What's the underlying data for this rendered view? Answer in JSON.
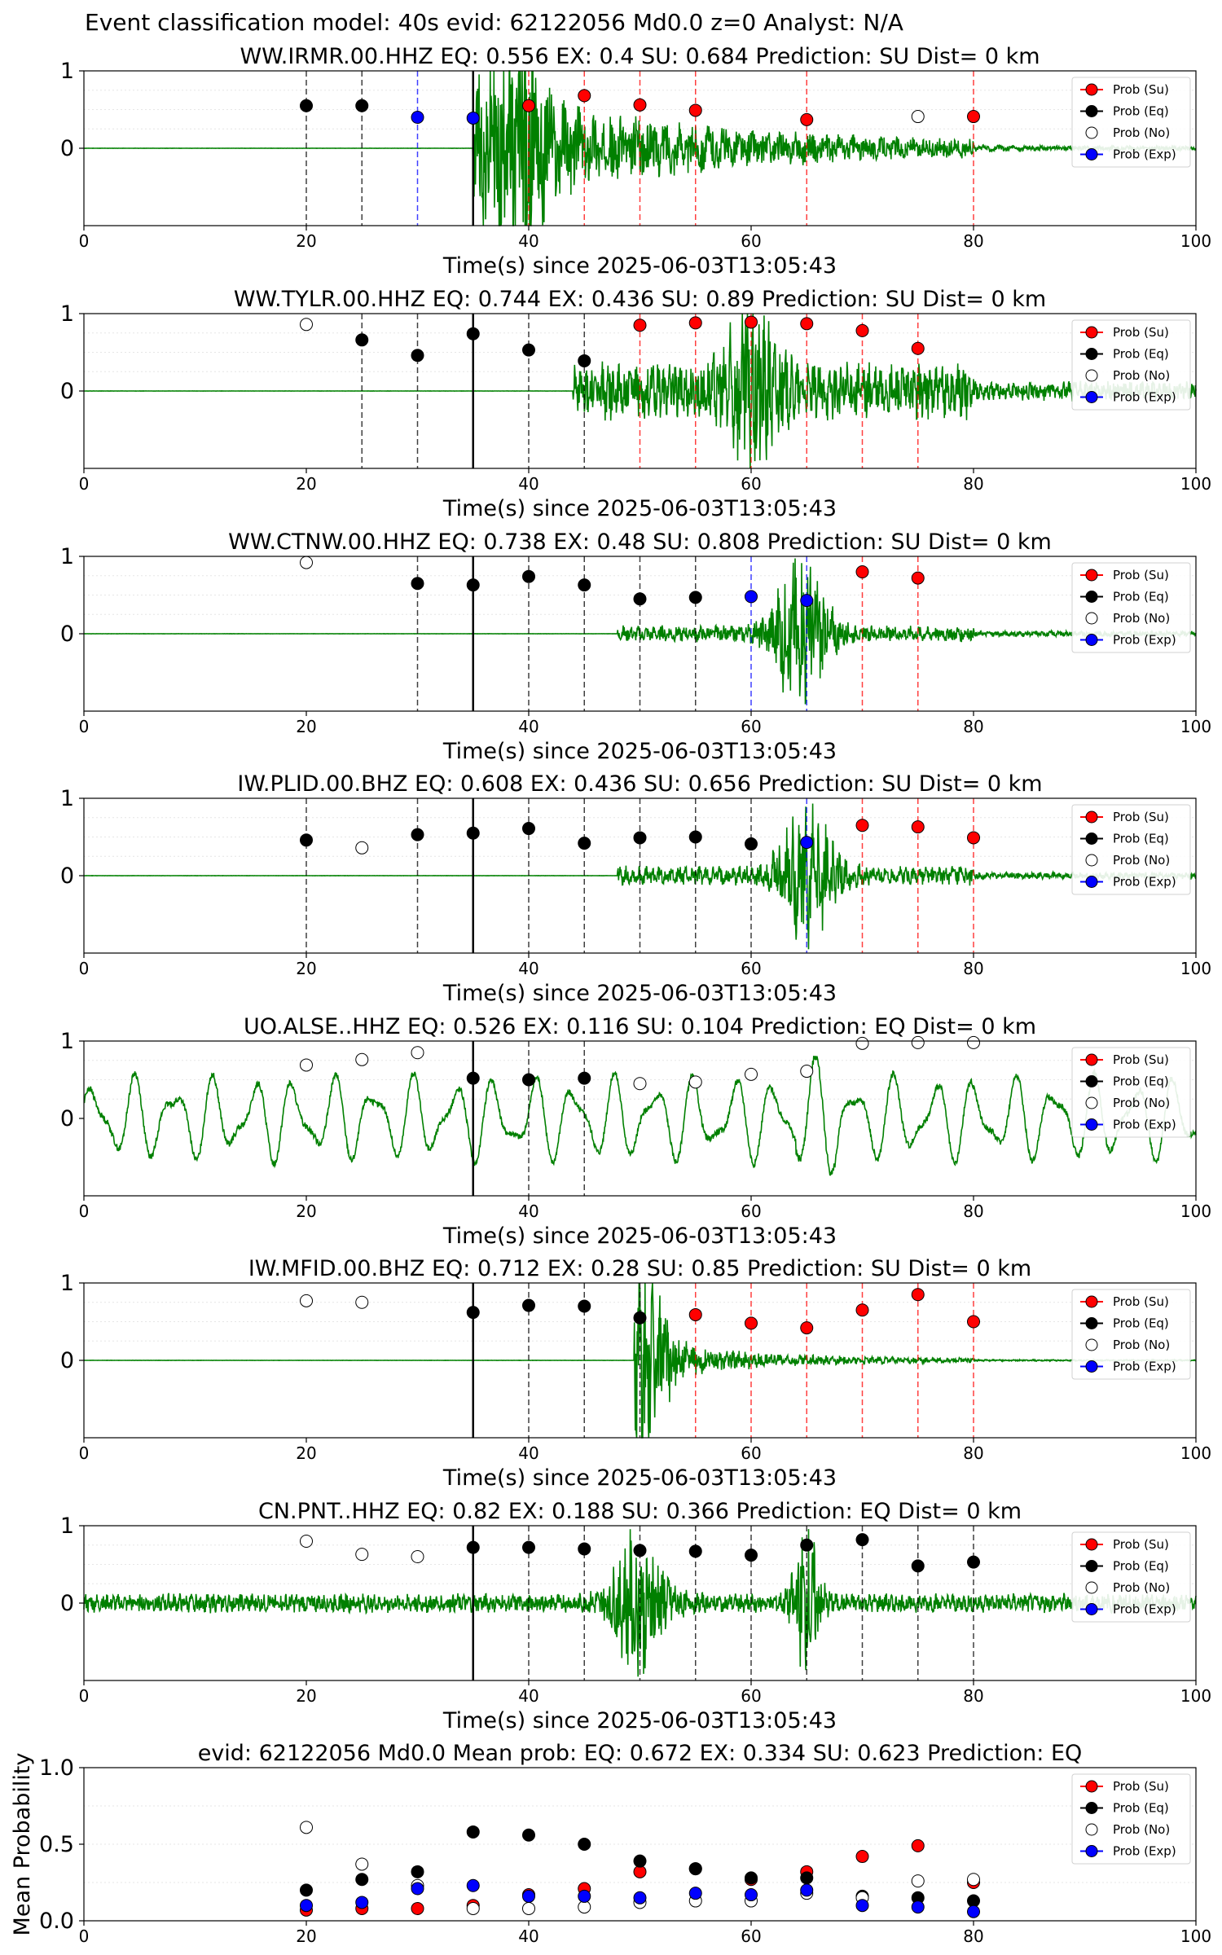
{
  "figure": {
    "suptitle": "Event classification model: 40s evid: 62122056 Md0.0 z=0 Analyst: N/A"
  },
  "legend": {
    "entries": [
      {
        "label": "Prob (Su)",
        "color": "#ff0000",
        "filled": true
      },
      {
        "label": "Prob (Eq)",
        "color": "#000000",
        "filled": true
      },
      {
        "label": "Prob (No)",
        "color": "#ffffff",
        "filled": false
      },
      {
        "label": "Prob (Exp)",
        "color": "#0000ff",
        "filled": true
      }
    ]
  },
  "colors": {
    "waveform": "#008000",
    "su": "#ff0000",
    "eq": "#000000",
    "exp": "#0000ff",
    "origin_line": "#000000"
  },
  "chart_data": [
    {
      "type": "scatter",
      "title": "WW.IRMR.00.HHZ   EQ: 0.556  EX: 0.4  SU: 0.684   Prediction: SU    Dist= 0 km",
      "xlabel": "Time(s) since 2025-06-03T13:05:43",
      "xlim": [
        0,
        100
      ],
      "xticks": [
        0,
        20,
        40,
        60,
        80,
        100
      ],
      "ylim": [
        -1,
        1
      ],
      "yticks": [
        0,
        1
      ],
      "origin_time": 35,
      "waveform": {
        "onset": 35,
        "amplitude": 0.8,
        "decay": 0.06,
        "period": 1.3,
        "peak_at": 39,
        "peak_amp": 1.0,
        "seed": 11
      },
      "points": [
        {
          "x": 20,
          "y": 0.55,
          "class": "Eq"
        },
        {
          "x": 25,
          "y": 0.55,
          "class": "Eq"
        },
        {
          "x": 30,
          "y": 0.4,
          "class": "Exp"
        },
        {
          "x": 35,
          "y": 0.39,
          "class": "Exp"
        },
        {
          "x": 40,
          "y": 0.55,
          "class": "Su"
        },
        {
          "x": 45,
          "y": 0.68,
          "class": "Su"
        },
        {
          "x": 50,
          "y": 0.56,
          "class": "Su"
        },
        {
          "x": 55,
          "y": 0.49,
          "class": "Su"
        },
        {
          "x": 65,
          "y": 0.37,
          "class": "Su"
        },
        {
          "x": 75,
          "y": 0.41,
          "class": "No"
        },
        {
          "x": 80,
          "y": 0.41,
          "class": "Su"
        }
      ]
    },
    {
      "type": "scatter",
      "title": "WW.TYLR.00.HHZ   EQ: 0.744  EX: 0.436  SU: 0.89   Prediction: SU    Dist= 0 km",
      "xlabel": "Time(s) since 2025-06-03T13:05:43",
      "xlim": [
        0,
        100
      ],
      "xticks": [
        0,
        20,
        40,
        60,
        80,
        100
      ],
      "ylim": [
        -1,
        1
      ],
      "yticks": [
        0,
        1
      ],
      "origin_time": 35,
      "waveform": {
        "onset": 44,
        "amplitude": 0.35,
        "decay": 0.0,
        "period": 0.5,
        "peak_at": 60,
        "peak_amp": 0.85,
        "seed": 22
      },
      "points": [
        {
          "x": 20,
          "y": 0.86,
          "class": "No"
        },
        {
          "x": 25,
          "y": 0.66,
          "class": "Eq"
        },
        {
          "x": 30,
          "y": 0.46,
          "class": "Eq"
        },
        {
          "x": 35,
          "y": 0.74,
          "class": "Eq"
        },
        {
          "x": 40,
          "y": 0.53,
          "class": "Eq"
        },
        {
          "x": 45,
          "y": 0.39,
          "class": "Eq"
        },
        {
          "x": 50,
          "y": 0.85,
          "class": "Su"
        },
        {
          "x": 55,
          "y": 0.88,
          "class": "Su"
        },
        {
          "x": 60,
          "y": 0.89,
          "class": "Su"
        },
        {
          "x": 65,
          "y": 0.87,
          "class": "Su"
        },
        {
          "x": 70,
          "y": 0.78,
          "class": "Su"
        },
        {
          "x": 75,
          "y": 0.55,
          "class": "Su"
        }
      ]
    },
    {
      "type": "scatter",
      "title": "WW.CTNW.00.HHZ   EQ: 0.738  EX: 0.48  SU: 0.808   Prediction: SU    Dist= 0 km",
      "xlabel": "Time(s) since 2025-06-03T13:05:43",
      "xlim": [
        0,
        100
      ],
      "xticks": [
        0,
        20,
        40,
        60,
        80,
        100
      ],
      "ylim": [
        -1,
        1
      ],
      "yticks": [
        0,
        1
      ],
      "origin_time": 35,
      "waveform": {
        "onset": 48,
        "amplitude": 0.1,
        "decay": 0.0,
        "period": 0.7,
        "peak_at": 64.5,
        "peak_amp": 0.95,
        "seed": 33
      },
      "points": [
        {
          "x": 20,
          "y": 0.92,
          "class": "No"
        },
        {
          "x": 30,
          "y": 0.65,
          "class": "Eq"
        },
        {
          "x": 35,
          "y": 0.63,
          "class": "Eq"
        },
        {
          "x": 40,
          "y": 0.74,
          "class": "Eq"
        },
        {
          "x": 45,
          "y": 0.63,
          "class": "Eq"
        },
        {
          "x": 50,
          "y": 0.45,
          "class": "Eq"
        },
        {
          "x": 55,
          "y": 0.47,
          "class": "Eq"
        },
        {
          "x": 60,
          "y": 0.48,
          "class": "Exp"
        },
        {
          "x": 65,
          "y": 0.43,
          "class": "Exp"
        },
        {
          "x": 70,
          "y": 0.8,
          "class": "Su"
        },
        {
          "x": 75,
          "y": 0.72,
          "class": "Su"
        }
      ]
    },
    {
      "type": "scatter",
      "title": "IW.PLID.00.BHZ   EQ: 0.608  EX: 0.436  SU: 0.656   Prediction: SU    Dist= 0 km",
      "xlabel": "Time(s) since 2025-06-03T13:05:43",
      "xlim": [
        0,
        100
      ],
      "xticks": [
        0,
        20,
        40,
        60,
        80,
        100
      ],
      "ylim": [
        -1,
        1
      ],
      "yticks": [
        0,
        1
      ],
      "origin_time": 35,
      "waveform": {
        "onset": 48,
        "amplitude": 0.12,
        "decay": 0.0,
        "period": 0.6,
        "peak_at": 65,
        "peak_amp": 0.85,
        "seed": 44
      },
      "points": [
        {
          "x": 20,
          "y": 0.46,
          "class": "Eq"
        },
        {
          "x": 25,
          "y": 0.36,
          "class": "No"
        },
        {
          "x": 30,
          "y": 0.53,
          "class": "Eq"
        },
        {
          "x": 35,
          "y": 0.55,
          "class": "Eq"
        },
        {
          "x": 40,
          "y": 0.61,
          "class": "Eq"
        },
        {
          "x": 45,
          "y": 0.42,
          "class": "Eq"
        },
        {
          "x": 50,
          "y": 0.49,
          "class": "Eq"
        },
        {
          "x": 55,
          "y": 0.5,
          "class": "Eq"
        },
        {
          "x": 60,
          "y": 0.41,
          "class": "Eq"
        },
        {
          "x": 65,
          "y": 0.43,
          "class": "Exp"
        },
        {
          "x": 70,
          "y": 0.65,
          "class": "Su"
        },
        {
          "x": 75,
          "y": 0.63,
          "class": "Su"
        },
        {
          "x": 80,
          "y": 0.49,
          "class": "Su"
        }
      ]
    },
    {
      "type": "scatter",
      "title": "UO.ALSE..HHZ   EQ: 0.526  EX: 0.116  SU: 0.104   Prediction: EQ    Dist= 0 km",
      "xlabel": "Time(s) since 2025-06-03T13:05:43",
      "xlim": [
        0,
        100
      ],
      "xticks": [
        0,
        20,
        40,
        60,
        80,
        100
      ],
      "ylim": [
        -1,
        1
      ],
      "yticks": [
        0,
        1
      ],
      "origin_time": 35,
      "waveform": {
        "onset": 0,
        "amplitude": 0.55,
        "decay": 0.0,
        "period": 3.6,
        "peak_at": 66,
        "peak_amp": 0.9,
        "seed": 55,
        "lowfreq": true
      },
      "points": [
        {
          "x": 20,
          "y": 0.69,
          "class": "No"
        },
        {
          "x": 25,
          "y": 0.76,
          "class": "No"
        },
        {
          "x": 30,
          "y": 0.85,
          "class": "No"
        },
        {
          "x": 35,
          "y": 0.52,
          "class": "Eq"
        },
        {
          "x": 40,
          "y": 0.5,
          "class": "Eq"
        },
        {
          "x": 45,
          "y": 0.52,
          "class": "Eq"
        },
        {
          "x": 50,
          "y": 0.45,
          "class": "No"
        },
        {
          "x": 55,
          "y": 0.47,
          "class": "No"
        },
        {
          "x": 60,
          "y": 0.57,
          "class": "No"
        },
        {
          "x": 65,
          "y": 0.61,
          "class": "No"
        },
        {
          "x": 70,
          "y": 0.97,
          "class": "No"
        },
        {
          "x": 75,
          "y": 0.98,
          "class": "No"
        },
        {
          "x": 80,
          "y": 0.98,
          "class": "No"
        }
      ]
    },
    {
      "type": "scatter",
      "title": "IW.MFID.00.BHZ   EQ: 0.712  EX: 0.28  SU: 0.85   Prediction: SU    Dist= 0 km",
      "xlabel": "Time(s) since 2025-06-03T13:05:43",
      "xlim": [
        0,
        100
      ],
      "xticks": [
        0,
        20,
        40,
        60,
        80,
        100
      ],
      "ylim": [
        -1,
        1
      ],
      "yticks": [
        0,
        1
      ],
      "origin_time": 35,
      "waveform": {
        "onset": 49.5,
        "amplitude": 0.3,
        "decay": 0.12,
        "period": 0.6,
        "peak_at": 50,
        "peak_amp": 0.95,
        "seed": 66
      },
      "points": [
        {
          "x": 20,
          "y": 0.77,
          "class": "No"
        },
        {
          "x": 25,
          "y": 0.75,
          "class": "No"
        },
        {
          "x": 35,
          "y": 0.62,
          "class": "Eq"
        },
        {
          "x": 40,
          "y": 0.71,
          "class": "Eq"
        },
        {
          "x": 45,
          "y": 0.7,
          "class": "Eq"
        },
        {
          "x": 50,
          "y": 0.55,
          "class": "Eq"
        },
        {
          "x": 55,
          "y": 0.59,
          "class": "Su"
        },
        {
          "x": 60,
          "y": 0.48,
          "class": "Su"
        },
        {
          "x": 65,
          "y": 0.42,
          "class": "Su"
        },
        {
          "x": 70,
          "y": 0.65,
          "class": "Su"
        },
        {
          "x": 75,
          "y": 0.85,
          "class": "Su"
        },
        {
          "x": 80,
          "y": 0.5,
          "class": "Su"
        }
      ]
    },
    {
      "type": "scatter",
      "title": "CN.PNT..HHZ   EQ: 0.82  EX: 0.188  SU: 0.366   Prediction: EQ    Dist= 0 km",
      "xlabel": "Time(s) since 2025-06-03T13:05:43",
      "xlim": [
        0,
        100
      ],
      "xticks": [
        0,
        20,
        40,
        60,
        80,
        100
      ],
      "ylim": [
        -1,
        1
      ],
      "yticks": [
        0,
        1
      ],
      "origin_time": 35,
      "waveform": {
        "onset": 0,
        "amplitude": 0.12,
        "decay": 0.0,
        "period": 0.5,
        "peak_at": 50,
        "peak_amp": 0.85,
        "seed": 77,
        "second_peak": 65
      },
      "points": [
        {
          "x": 20,
          "y": 0.8,
          "class": "No"
        },
        {
          "x": 25,
          "y": 0.63,
          "class": "No"
        },
        {
          "x": 30,
          "y": 0.6,
          "class": "No"
        },
        {
          "x": 35,
          "y": 0.72,
          "class": "Eq"
        },
        {
          "x": 40,
          "y": 0.72,
          "class": "Eq"
        },
        {
          "x": 45,
          "y": 0.7,
          "class": "Eq"
        },
        {
          "x": 50,
          "y": 0.68,
          "class": "Eq"
        },
        {
          "x": 55,
          "y": 0.67,
          "class": "Eq"
        },
        {
          "x": 60,
          "y": 0.62,
          "class": "Eq"
        },
        {
          "x": 65,
          "y": 0.75,
          "class": "Eq"
        },
        {
          "x": 70,
          "y": 0.82,
          "class": "Eq"
        },
        {
          "x": 75,
          "y": 0.48,
          "class": "Eq"
        },
        {
          "x": 80,
          "y": 0.53,
          "class": "Eq"
        }
      ]
    },
    {
      "type": "scatter",
      "title": "evid: 62122056  Md0.0   Mean prob:   EQ: 0.672  EX: 0.334  SU: 0.623   Prediction: EQ",
      "ylabel": "Mean Probability",
      "xlim": [
        0,
        100
      ],
      "xticks": [
        0,
        20,
        40,
        60,
        80,
        100
      ],
      "ylim": [
        0,
        1
      ],
      "yticks": [
        0.0,
        0.5,
        1.0
      ],
      "ytick_labels": [
        "0.0",
        "0.5",
        "1.0"
      ],
      "series": [
        {
          "name": "Prob (Su)",
          "class": "Su",
          "x": [
            20,
            25,
            30,
            35,
            40,
            45,
            50,
            55,
            60,
            65,
            70,
            75,
            80
          ],
          "y": [
            0.07,
            0.08,
            0.08,
            0.1,
            0.17,
            0.21,
            0.32,
            0.34,
            0.27,
            0.32,
            0.42,
            0.49,
            0.25
          ]
        },
        {
          "name": "Prob (Eq)",
          "class": "Eq",
          "x": [
            20,
            25,
            30,
            35,
            40,
            45,
            50,
            55,
            60,
            65,
            70,
            75,
            80
          ],
          "y": [
            0.2,
            0.27,
            0.32,
            0.58,
            0.56,
            0.5,
            0.39,
            0.34,
            0.28,
            0.28,
            0.16,
            0.15,
            0.13
          ]
        },
        {
          "name": "Prob (No)",
          "class": "No",
          "x": [
            20,
            25,
            30,
            35,
            40,
            45,
            50,
            55,
            60,
            65,
            70,
            75,
            80
          ],
          "y": [
            0.61,
            0.37,
            0.23,
            0.08,
            0.08,
            0.09,
            0.12,
            0.13,
            0.13,
            0.18,
            0.15,
            0.26,
            0.27
          ]
        },
        {
          "name": "Prob (Exp)",
          "class": "Exp",
          "x": [
            20,
            25,
            30,
            35,
            40,
            45,
            50,
            55,
            60,
            65,
            70,
            75,
            80
          ],
          "y": [
            0.1,
            0.12,
            0.21,
            0.23,
            0.16,
            0.16,
            0.15,
            0.18,
            0.17,
            0.2,
            0.1,
            0.09,
            0.06
          ]
        }
      ]
    }
  ]
}
